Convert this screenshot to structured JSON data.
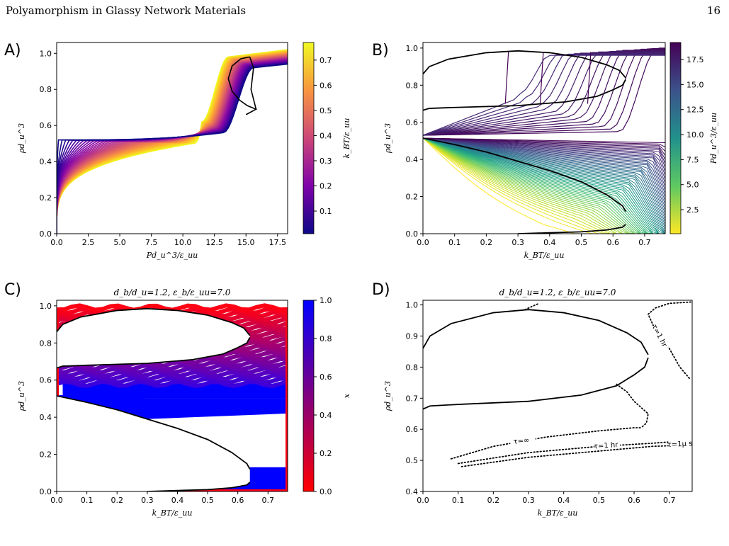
{
  "header": {
    "title": "Polyamorphism in Glassy Network Materials",
    "page_number": "16"
  },
  "caption": "",
  "chart_data": [
    {
      "panel": "A)",
      "type": "line",
      "title": "",
      "xlabel": "Pd_u^3/ε_uu",
      "ylabel": "ρd_u^3",
      "xlim": [
        0,
        18.3
      ],
      "ylim": [
        0,
        1.06
      ],
      "xticks": [
        "0.0",
        "2.5",
        "5.0",
        "7.5",
        "10.0",
        "12.5",
        "15.0",
        "17.5"
      ],
      "yticks": [
        "0.0",
        "0.2",
        "0.4",
        "0.6",
        "0.8",
        "1.0"
      ],
      "colorbar": {
        "label": "k_BT/ε_uu",
        "range": [
          0.01,
          0.77
        ],
        "ticks": [
          "0.1",
          "0.2",
          "0.3",
          "0.4",
          "0.5",
          "0.6",
          "0.7"
        ],
        "colormap": "plasma"
      },
      "isotherms": {
        "count": 40,
        "t_range": [
          0.01,
          0.77
        ]
      },
      "boundary": [
        {
          "x": 15.3,
          "y": 0.98
        },
        {
          "x": 14.6,
          "y": 0.97
        },
        {
          "x": 13.9,
          "y": 0.93
        },
        {
          "x": 13.6,
          "y": 0.86
        },
        {
          "x": 13.9,
          "y": 0.79
        },
        {
          "x": 14.5,
          "y": 0.74
        },
        {
          "x": 15.1,
          "y": 0.71
        },
        {
          "x": 15.8,
          "y": 0.69
        },
        {
          "x": 15.0,
          "y": 0.66
        },
        {
          "x": 15.8,
          "y": 0.69
        },
        {
          "x": 15.4,
          "y": 0.8
        },
        {
          "x": 15.6,
          "y": 0.92
        },
        {
          "x": 15.3,
          "y": 0.98
        }
      ]
    },
    {
      "panel": "B)",
      "type": "line",
      "title": "",
      "xlabel": "k_BT/ε_uu",
      "ylabel": "ρd_u^3",
      "xlim": [
        0,
        0.765
      ],
      "ylim": [
        0,
        1.03
      ],
      "xticks": [
        "0.0",
        "0.1",
        "0.2",
        "0.3",
        "0.4",
        "0.5",
        "0.6",
        "0.7"
      ],
      "yticks": [
        "0.0",
        "0.2",
        "0.4",
        "0.6",
        "0.8",
        "1.0"
      ],
      "colorbar": {
        "label": "Pd_u^3/ε_uu",
        "range": [
          0.1,
          19.2
        ],
        "ticks": [
          "2.5",
          "5.0",
          "7.5",
          "10.0",
          "12.5",
          "15.0",
          "17.5"
        ],
        "colormap": "viridis_r"
      },
      "isobars": {
        "count": 60,
        "p_range": [
          0.1,
          19.2
        ]
      },
      "binodal_upper": [
        {
          "x": 0.0,
          "y": 0.86
        },
        {
          "x": 0.02,
          "y": 0.9
        },
        {
          "x": 0.08,
          "y": 0.94
        },
        {
          "x": 0.2,
          "y": 0.975
        },
        {
          "x": 0.3,
          "y": 0.985
        },
        {
          "x": 0.4,
          "y": 0.975
        },
        {
          "x": 0.5,
          "y": 0.95
        },
        {
          "x": 0.58,
          "y": 0.91
        },
        {
          "x": 0.62,
          "y": 0.88
        },
        {
          "x": 0.64,
          "y": 0.84
        }
      ],
      "binodal_lower": [
        {
          "x": 0.0,
          "y": 0.665
        },
        {
          "x": 0.02,
          "y": 0.675
        },
        {
          "x": 0.1,
          "y": 0.68
        },
        {
          "x": 0.3,
          "y": 0.69
        },
        {
          "x": 0.45,
          "y": 0.71
        },
        {
          "x": 0.55,
          "y": 0.74
        },
        {
          "x": 0.6,
          "y": 0.775
        },
        {
          "x": 0.63,
          "y": 0.8
        },
        {
          "x": 0.64,
          "y": 0.83
        }
      ],
      "gas_liquid_upper": [
        {
          "x": 0.0,
          "y": 0.515
        },
        {
          "x": 0.1,
          "y": 0.48
        },
        {
          "x": 0.2,
          "y": 0.44
        },
        {
          "x": 0.3,
          "y": 0.39
        },
        {
          "x": 0.4,
          "y": 0.34
        },
        {
          "x": 0.5,
          "y": 0.28
        },
        {
          "x": 0.58,
          "y": 0.21
        },
        {
          "x": 0.63,
          "y": 0.15
        },
        {
          "x": 0.64,
          "y": 0.12
        }
      ],
      "gas_liquid_lower": [
        {
          "x": 0.3,
          "y": 0.0
        },
        {
          "x": 0.4,
          "y": 0.005
        },
        {
          "x": 0.5,
          "y": 0.01
        },
        {
          "x": 0.58,
          "y": 0.02
        },
        {
          "x": 0.63,
          "y": 0.035
        },
        {
          "x": 0.64,
          "y": 0.05
        }
      ]
    },
    {
      "panel": "C)",
      "type": "heatmap",
      "title": "d_b/d_u=1.2, ε_b/ε_uu=7.0",
      "xlabel": "k_BT/ε_uu",
      "ylabel": "ρd_u^3",
      "xlim": [
        0,
        0.765
      ],
      "ylim": [
        0,
        1.03
      ],
      "xticks": [
        "0.0",
        "0.1",
        "0.2",
        "0.3",
        "0.4",
        "0.5",
        "0.6",
        "0.7"
      ],
      "yticks": [
        "0.0",
        "0.2",
        "0.4",
        "0.6",
        "0.8",
        "1.0"
      ],
      "colorbar": {
        "label": "x",
        "range": [
          0.0,
          1.0
        ],
        "ticks": [
          "0.0",
          "0.2",
          "0.4",
          "0.6",
          "0.8",
          "1.0"
        ],
        "colors": [
          "#ff0000",
          "#0000ff"
        ]
      }
    },
    {
      "panel": "D)",
      "type": "line",
      "title": "d_b/d_u=1.2, ε_b/ε_uu=7.0",
      "xlabel": "k_BT/ε_uu",
      "ylabel": "ρd_u^3",
      "xlim": [
        0,
        0.765
      ],
      "ylim": [
        0.4,
        1.015
      ],
      "xticks": [
        "0.0",
        "0.1",
        "0.2",
        "0.3",
        "0.4",
        "0.5",
        "0.6",
        "0.7"
      ],
      "yticks": [
        "0.4",
        "0.5",
        "0.6",
        "0.7",
        "0.8",
        "0.9",
        "1.0"
      ],
      "contour_labels": [
        "τ=1 hr",
        "τ=∞",
        "τ=1 hr",
        "τ=1μ s"
      ],
      "solid_upper": [
        {
          "x": 0.0,
          "y": 0.86
        },
        {
          "x": 0.02,
          "y": 0.9
        },
        {
          "x": 0.08,
          "y": 0.94
        },
        {
          "x": 0.2,
          "y": 0.975
        },
        {
          "x": 0.3,
          "y": 0.985
        },
        {
          "x": 0.4,
          "y": 0.975
        },
        {
          "x": 0.5,
          "y": 0.95
        },
        {
          "x": 0.58,
          "y": 0.91
        },
        {
          "x": 0.62,
          "y": 0.88
        },
        {
          "x": 0.64,
          "y": 0.84
        }
      ],
      "solid_lower": [
        {
          "x": 0.0,
          "y": 0.665
        },
        {
          "x": 0.02,
          "y": 0.675
        },
        {
          "x": 0.1,
          "y": 0.68
        },
        {
          "x": 0.3,
          "y": 0.69
        },
        {
          "x": 0.45,
          "y": 0.71
        },
        {
          "x": 0.55,
          "y": 0.74
        },
        {
          "x": 0.6,
          "y": 0.775
        },
        {
          "x": 0.63,
          "y": 0.8
        },
        {
          "x": 0.64,
          "y": 0.83
        }
      ],
      "dotted_top": [
        {
          "x": 0.29,
          "y": 0.985
        },
        {
          "x": 0.33,
          "y": 1.005
        }
      ],
      "dotted_right": [
        {
          "x": 0.77,
          "y": 1.01
        },
        {
          "x": 0.7,
          "y": 1.005
        },
        {
          "x": 0.66,
          "y": 0.99
        },
        {
          "x": 0.64,
          "y": 0.97
        },
        {
          "x": 0.66,
          "y": 0.92
        },
        {
          "x": 0.7,
          "y": 0.86
        },
        {
          "x": 0.73,
          "y": 0.8
        },
        {
          "x": 0.76,
          "y": 0.76
        }
      ],
      "dotted_mid": [
        {
          "x": 0.55,
          "y": 0.745
        },
        {
          "x": 0.58,
          "y": 0.72
        },
        {
          "x": 0.6,
          "y": 0.69
        },
        {
          "x": 0.62,
          "y": 0.67
        },
        {
          "x": 0.64,
          "y": 0.65
        },
        {
          "x": 0.635,
          "y": 0.62
        },
        {
          "x": 0.62,
          "y": 0.605
        }
      ],
      "dotted_inf": [
        {
          "x": 0.08,
          "y": 0.505
        },
        {
          "x": 0.2,
          "y": 0.545
        },
        {
          "x": 0.35,
          "y": 0.575
        },
        {
          "x": 0.5,
          "y": 0.595
        },
        {
          "x": 0.6,
          "y": 0.605
        },
        {
          "x": 0.62,
          "y": 0.605
        }
      ],
      "dotted_hr": [
        {
          "x": 0.1,
          "y": 0.49
        },
        {
          "x": 0.3,
          "y": 0.525
        },
        {
          "x": 0.5,
          "y": 0.545
        },
        {
          "x": 0.65,
          "y": 0.555
        },
        {
          "x": 0.77,
          "y": 0.565
        }
      ],
      "dotted_us": [
        {
          "x": 0.11,
          "y": 0.48
        },
        {
          "x": 0.3,
          "y": 0.51
        },
        {
          "x": 0.5,
          "y": 0.53
        },
        {
          "x": 0.65,
          "y": 0.545
        },
        {
          "x": 0.77,
          "y": 0.55
        }
      ]
    }
  ]
}
